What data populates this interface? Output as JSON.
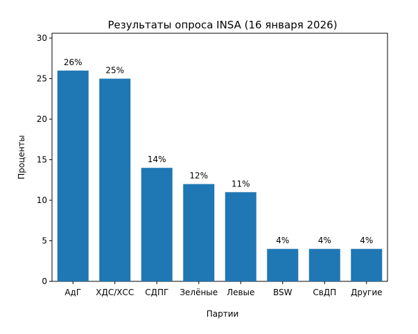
{
  "chart_data": {
    "type": "bar",
    "title": "Результаты опроса INSA (16 января 2026)",
    "xlabel": "Партии",
    "ylabel": "Проценты",
    "categories": [
      "АдГ",
      "ХДС/ХСС",
      "СДПГ",
      "Зелёные",
      "Левые",
      "BSW",
      "СвДП",
      "Другие"
    ],
    "values": [
      26,
      25,
      14,
      12,
      11,
      4,
      4,
      4
    ],
    "data_labels": [
      "26%",
      "25%",
      "14%",
      "12%",
      "11%",
      "4%",
      "4%",
      "4%"
    ],
    "ylim": [
      0,
      30.6
    ],
    "yticks": [
      0,
      5,
      10,
      15,
      20,
      25,
      30
    ],
    "grid": false,
    "bar_color": "#1f77b4"
  }
}
